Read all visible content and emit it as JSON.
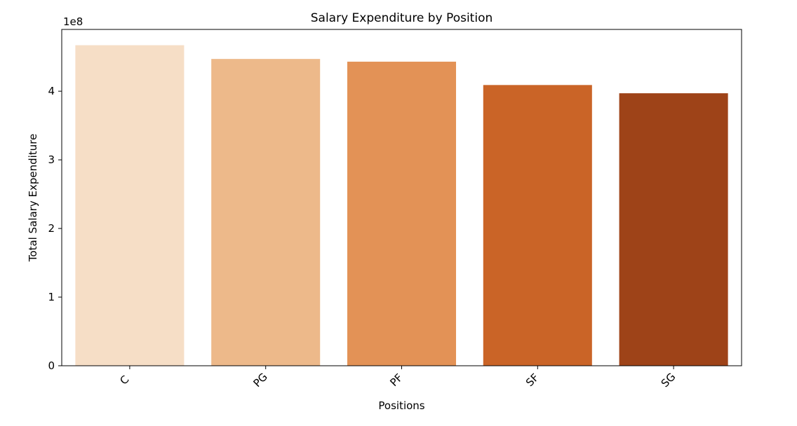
{
  "chart_data": {
    "type": "bar",
    "title": "Salary Expenditure by Position",
    "xlabel": "Positions",
    "ylabel": "Total Salary Expenditure",
    "offset_text": "1e8",
    "scale": 100000000,
    "categories": [
      "C",
      "PG",
      "PF",
      "SF",
      "SG"
    ],
    "values": [
      467000000,
      447000000,
      443000000,
      409000000,
      397000000
    ],
    "colors": [
      "#f6dec6",
      "#edb98a",
      "#e39256",
      "#ca6427",
      "#9e4318"
    ],
    "ylim": [
      0,
      490000000
    ],
    "yticks": [
      0,
      100000000,
      200000000,
      300000000,
      400000000
    ],
    "ytick_labels": [
      "0",
      "1",
      "2",
      "3",
      "4"
    ],
    "xtick_rotation": -45,
    "grid": false,
    "legend": false
  }
}
